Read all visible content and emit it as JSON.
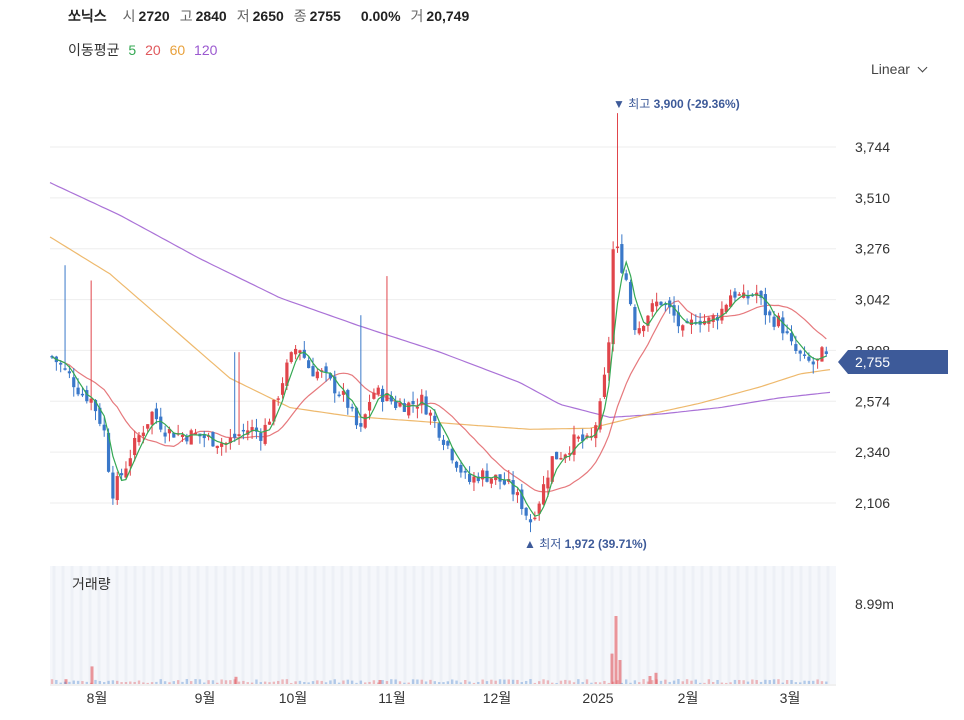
{
  "header": {
    "name": "쏘닉스",
    "open_label": "시",
    "open": "2720",
    "high_label": "고",
    "high": "2840",
    "low_label": "저",
    "low": "2650",
    "close_label": "종",
    "close": "2755",
    "change": "0.00%",
    "volume_label": "거",
    "volume": "20,749"
  },
  "ma_legend": {
    "title": "이동평균",
    "items": [
      {
        "label": "5",
        "color": "#34a853"
      },
      {
        "label": "20",
        "color": "#e0585c"
      },
      {
        "label": "60",
        "color": "#e8a13c"
      },
      {
        "label": "120",
        "color": "#9b59d0"
      }
    ]
  },
  "scale_select": {
    "value": "Linear",
    "icon": "chevron-down-icon"
  },
  "chart_data": {
    "type": "candlestick",
    "y_ticks": [
      "3,744",
      "3,510",
      "3,276",
      "3,042",
      "2,808",
      "2,574",
      "2,340",
      "2,106"
    ],
    "y_tick_values": [
      3744,
      3510,
      3276,
      3042,
      2808,
      2574,
      2340,
      2106
    ],
    "x_ticks": [
      "8월",
      "9월",
      "10월",
      "11월",
      "12월",
      "2025",
      "2월",
      "3월"
    ],
    "current_price": "2,755",
    "max_annotation": {
      "label": "최고",
      "value": "3,900",
      "pct": "(-29.36%)"
    },
    "min_annotation": {
      "label": "최저",
      "value": "1,972",
      "pct": "(39.71%)"
    },
    "volume_label": "거래량",
    "volume_tick": "8.99m",
    "colors": {
      "up": "#e0454b",
      "down": "#3a78c9",
      "accent": "#3d5a99"
    },
    "month_x_values": [
      97,
      205,
      293,
      392,
      497,
      598,
      688,
      790
    ],
    "trend_keypoints": [
      [
        52,
        2780
      ],
      [
        68,
        2700
      ],
      [
        80,
        2620
      ],
      [
        92,
        2580
      ],
      [
        104,
        2440
      ],
      [
        112,
        2150
      ],
      [
        124,
        2260
      ],
      [
        136,
        2390
      ],
      [
        152,
        2520
      ],
      [
        166,
        2440
      ],
      [
        182,
        2420
      ],
      [
        196,
        2420
      ],
      [
        210,
        2400
      ],
      [
        226,
        2380
      ],
      [
        238,
        2420
      ],
      [
        250,
        2450
      ],
      [
        262,
        2420
      ],
      [
        274,
        2550
      ],
      [
        286,
        2720
      ],
      [
        298,
        2840
      ],
      [
        310,
        2720
      ],
      [
        322,
        2700
      ],
      [
        334,
        2640
      ],
      [
        346,
        2580
      ],
      [
        360,
        2420
      ],
      [
        372,
        2620
      ],
      [
        384,
        2600
      ],
      [
        396,
        2560
      ],
      [
        410,
        2560
      ],
      [
        422,
        2580
      ],
      [
        432,
        2500
      ],
      [
        444,
        2400
      ],
      [
        456,
        2300
      ],
      [
        468,
        2200
      ],
      [
        480,
        2240
      ],
      [
        496,
        2220
      ],
      [
        510,
        2180
      ],
      [
        522,
        2100
      ],
      [
        530,
        2020
      ],
      [
        540,
        2130
      ],
      [
        552,
        2310
      ],
      [
        564,
        2340
      ],
      [
        576,
        2400
      ],
      [
        590,
        2380
      ],
      [
        600,
        2540
      ],
      [
        608,
        2780
      ],
      [
        614,
        3350
      ],
      [
        618,
        3250
      ],
      [
        626,
        3140
      ],
      [
        636,
        2900
      ],
      [
        648,
        2980
      ],
      [
        660,
        3040
      ],
      [
        672,
        2980
      ],
      [
        684,
        2880
      ],
      [
        696,
        2960
      ],
      [
        708,
        2940
      ],
      [
        720,
        2980
      ],
      [
        732,
        3080
      ],
      [
        744,
        3040
      ],
      [
        756,
        3080
      ],
      [
        768,
        2960
      ],
      [
        780,
        2940
      ],
      [
        792,
        2820
      ],
      [
        804,
        2760
      ],
      [
        816,
        2740
      ],
      [
        822,
        2790
      ],
      [
        830,
        2755
      ]
    ],
    "ma120_keypoints": [
      [
        50,
        3580
      ],
      [
        120,
        3430
      ],
      [
        200,
        3230
      ],
      [
        280,
        3050
      ],
      [
        360,
        2920
      ],
      [
        440,
        2800
      ],
      [
        520,
        2660
      ],
      [
        560,
        2560
      ],
      [
        610,
        2500
      ],
      [
        660,
        2515
      ],
      [
        720,
        2545
      ],
      [
        780,
        2590
      ],
      [
        830,
        2615
      ]
    ],
    "ma60_keypoints": [
      [
        50,
        3330
      ],
      [
        110,
        3160
      ],
      [
        170,
        2920
      ],
      [
        230,
        2680
      ],
      [
        290,
        2545
      ],
      [
        350,
        2505
      ],
      [
        410,
        2485
      ],
      [
        470,
        2465
      ],
      [
        530,
        2445
      ],
      [
        590,
        2450
      ],
      [
        640,
        2505
      ],
      [
        700,
        2565
      ],
      [
        760,
        2640
      ],
      [
        800,
        2700
      ],
      [
        830,
        2720
      ]
    ],
    "volume_keypoints": [
      [
        66,
        0.06
      ],
      [
        92,
        0.22
      ],
      [
        236,
        0.09
      ],
      [
        380,
        0.05
      ],
      [
        612,
        0.38
      ],
      [
        616,
        0.85
      ],
      [
        620,
        0.3
      ],
      [
        650,
        0.1
      ],
      [
        656,
        0.14
      ]
    ]
  }
}
